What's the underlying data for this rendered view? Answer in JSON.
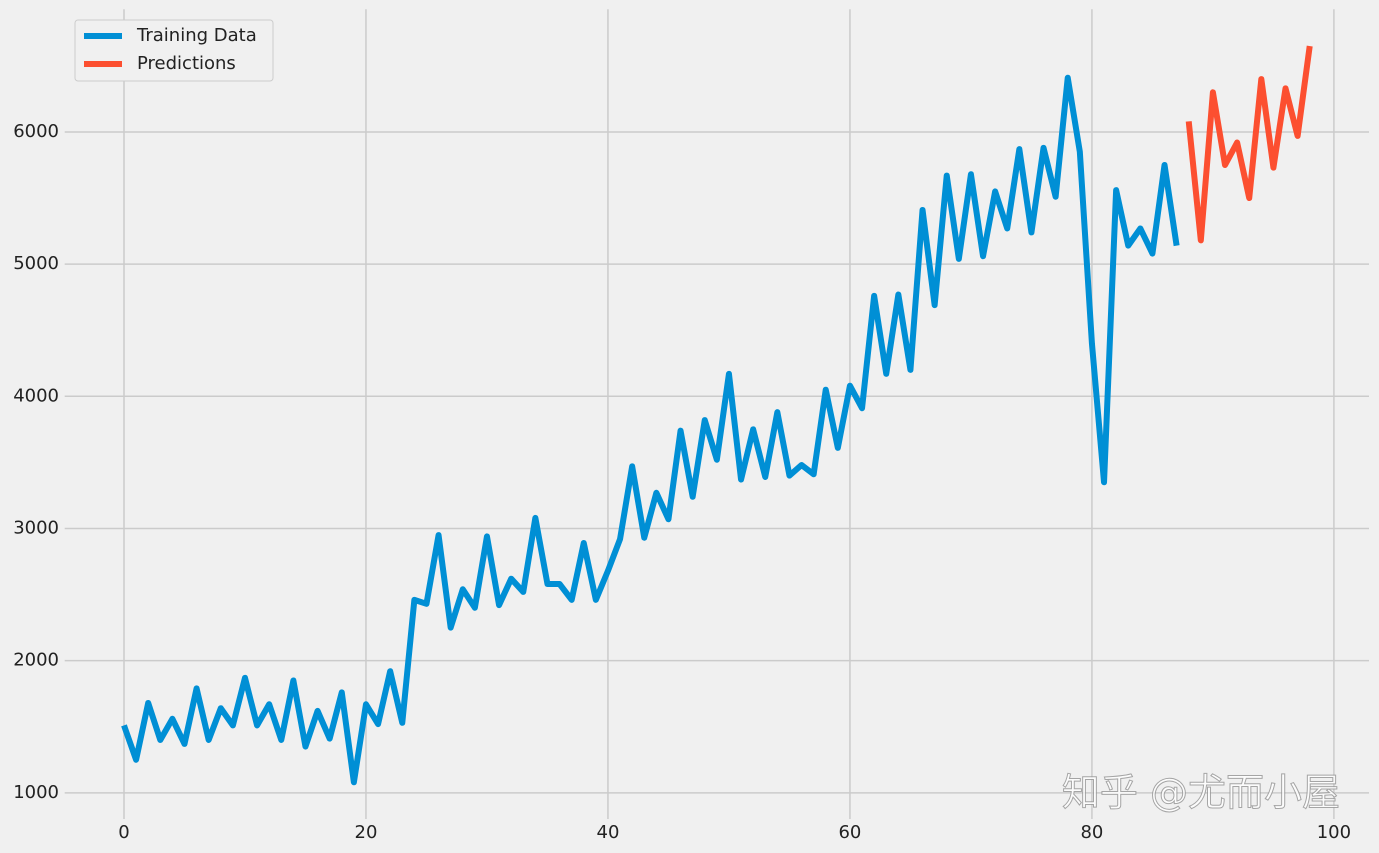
{
  "chart_data": {
    "type": "line",
    "xlim": [
      -4.9,
      102.9
    ],
    "ylim": [
      802,
      6928
    ],
    "xticks": [
      0,
      20,
      40,
      60,
      80,
      100
    ],
    "yticks": [
      1000,
      2000,
      3000,
      4000,
      5000,
      6000
    ],
    "grid": true,
    "legend": "upper left",
    "watermark": "知乎 @尤而小屋",
    "series": [
      {
        "name": "Training Data",
        "color": "#008fd5",
        "x": [
          0,
          1,
          2,
          3,
          4,
          5,
          6,
          7,
          8,
          9,
          10,
          11,
          12,
          13,
          14,
          15,
          16,
          17,
          18,
          19,
          20,
          21,
          22,
          23,
          24,
          25,
          26,
          27,
          28,
          29,
          30,
          31,
          32,
          33,
          34,
          35,
          36,
          37,
          38,
          39,
          40,
          41,
          42,
          43,
          44,
          45,
          46,
          47,
          48,
          49,
          50,
          51,
          52,
          53,
          54,
          55,
          56,
          57,
          58,
          59,
          60,
          61,
          62,
          63,
          64,
          65,
          66,
          67,
          68,
          69,
          70,
          71,
          72,
          73,
          74,
          75,
          76,
          77,
          78,
          79,
          80,
          81,
          82,
          83,
          84,
          85,
          86,
          87
        ],
        "values": [
          1510,
          1250,
          1680,
          1400,
          1560,
          1370,
          1790,
          1400,
          1640,
          1510,
          1870,
          1510,
          1670,
          1400,
          1850,
          1350,
          1620,
          1410,
          1760,
          1080,
          1670,
          1520,
          1920,
          1530,
          2460,
          2430,
          2950,
          2250,
          2540,
          2400,
          2940,
          2420,
          2620,
          2520,
          3080,
          2580,
          2580,
          2460,
          2890,
          2460,
          2680,
          2920,
          3470,
          2930,
          3270,
          3070,
          3740,
          3240,
          3820,
          3520,
          4170,
          3370,
          3750,
          3390,
          3880,
          3400,
          3480,
          3410,
          4050,
          3610,
          4080,
          3910,
          4760,
          4170,
          4770,
          4200,
          5410,
          4690,
          5670,
          5040,
          5680,
          5060,
          5550,
          5270,
          5870,
          5240,
          5880,
          5510,
          6410,
          5850,
          4400,
          3350,
          5560,
          5140,
          5270,
          5080,
          5750,
          5140
        ]
      },
      {
        "name": "Predictions",
        "color": "#fc4f30",
        "x": [
          88,
          89,
          90,
          91,
          92,
          93,
          94,
          95,
          96,
          97,
          98
        ],
        "values": [
          6080,
          5180,
          6300,
          5750,
          5920,
          5500,
          6400,
          5730,
          6330,
          5970,
          6650
        ]
      }
    ]
  }
}
